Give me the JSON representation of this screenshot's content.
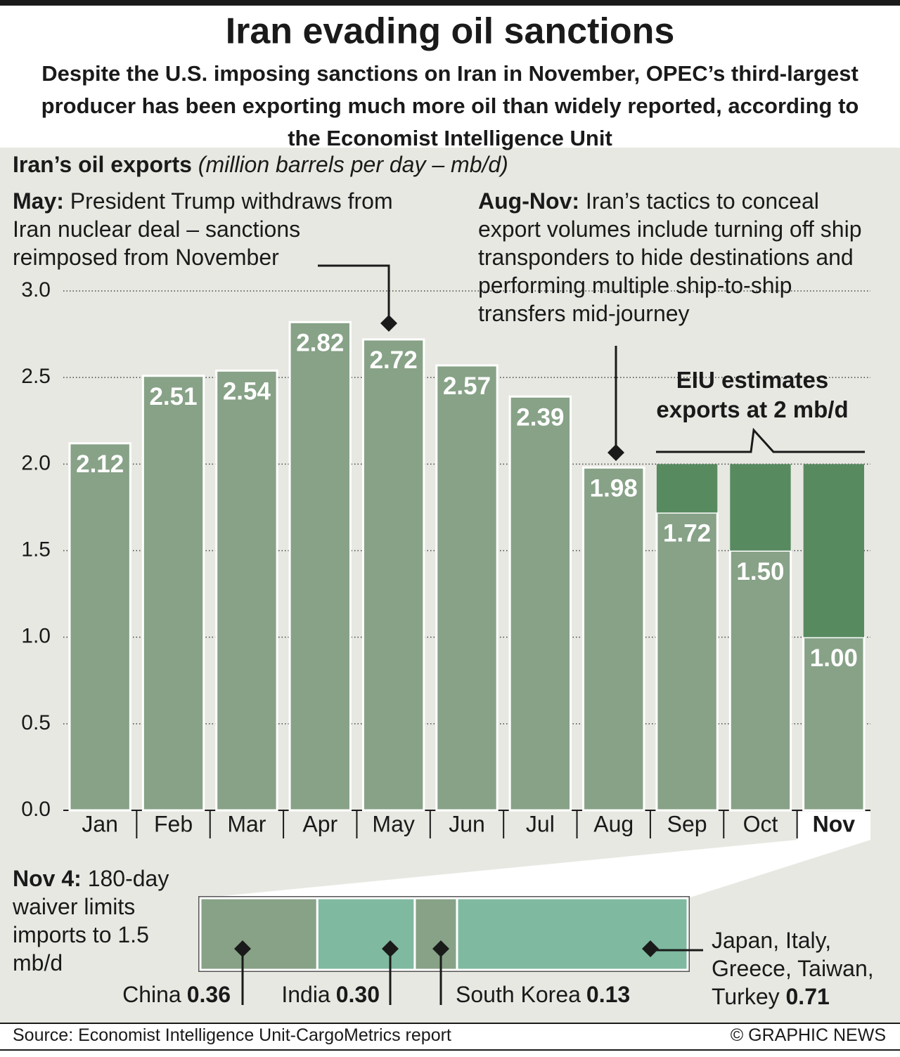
{
  "header": {
    "title": "Iran evading oil sanctions",
    "subtitle": "Despite the U.S. imposing sanctions on Iran in November, OPEC’s third-largest producer has been exporting much more oil than widely reported, according to the Economist Intelligence Unit"
  },
  "chart_data": [
    {
      "type": "bar",
      "title": "Iran’s oil exports",
      "subtitle": "(million barrels per day – mb/d)",
      "categories": [
        "Jan",
        "Feb",
        "Mar",
        "Apr",
        "May",
        "Jun",
        "Jul",
        "Aug",
        "Sep",
        "Oct",
        "Nov"
      ],
      "series": [
        {
          "color": "#87a287",
          "values": [
            2.12,
            2.51,
            2.54,
            2.82,
            2.72,
            2.57,
            2.39,
            1.98,
            1.72,
            1.5,
            1.0
          ],
          "value_labels": [
            "2.12",
            "2.51",
            "2.54",
            "2.82",
            "2.72",
            "2.57",
            "2.39",
            "1.98",
            "1.72",
            "1.50",
            "1.00"
          ]
        },
        {
          "color": "#588a60",
          "values": [
            null,
            null,
            null,
            null,
            null,
            null,
            null,
            null,
            0.28,
            0.5,
            1.0
          ]
        }
      ],
      "ylim": [
        0,
        3
      ],
      "yticks": [
        {
          "value": 0,
          "label": "0.0"
        },
        0.5,
        {
          "value": 1,
          "label": "1.0"
        },
        1.5,
        {
          "value": 2,
          "label": "2.0"
        },
        2.5,
        {
          "value": 3,
          "label": "3.0"
        }
      ],
      "grid": true,
      "annotations": [
        {
          "label": "May:",
          "text": "President Trump withdraws from Iran nuclear deal – sanctions reimposed from November"
        },
        {
          "label": "Aug-Nov:",
          "text": "Iran’s tactics to conceal export volumes include turning off ship transponders to hide destinations and performing multiple ship-to-ship transfers mid-journey"
        },
        {
          "text": "EIU estimates exports at 2 mb/d"
        }
      ]
    },
    {
      "type": "stacked-bar",
      "title": "Nov 4:",
      "subtitle": "180-day waiver limits imports to 1.5 mb/d",
      "categories": [
        "China",
        "India",
        "South Korea",
        "Japan, Italy, Greece, Taiwan, Turkey"
      ],
      "values": [
        0.36,
        0.3,
        0.13,
        0.71
      ],
      "value_labels": [
        "0.36",
        "0.30",
        "0.13",
        "0.71"
      ],
      "colors": [
        "#87a287",
        "#7fb9a0",
        "#87a287",
        "#7fb9a0"
      ]
    }
  ],
  "footer": {
    "source": "Source: Economist Intelligence Unit-CargoMetrics report",
    "credit": "© GRAPHIC NEWS"
  }
}
